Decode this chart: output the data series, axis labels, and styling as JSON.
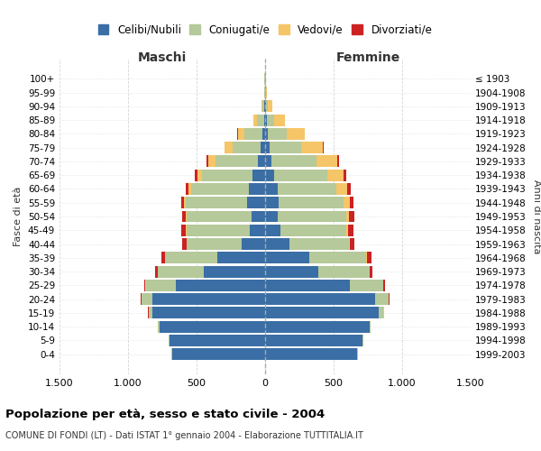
{
  "age_groups": [
    "0-4",
    "5-9",
    "10-14",
    "15-19",
    "20-24",
    "25-29",
    "30-34",
    "35-39",
    "40-44",
    "45-49",
    "50-54",
    "55-59",
    "60-64",
    "65-69",
    "70-74",
    "75-79",
    "80-84",
    "85-89",
    "90-94",
    "95-99",
    "100+"
  ],
  "birth_years": [
    "1999-2003",
    "1994-1998",
    "1989-1993",
    "1984-1988",
    "1979-1983",
    "1974-1978",
    "1969-1973",
    "1964-1968",
    "1959-1963",
    "1954-1958",
    "1949-1953",
    "1944-1948",
    "1939-1943",
    "1934-1938",
    "1929-1933",
    "1924-1928",
    "1919-1923",
    "1914-1918",
    "1909-1913",
    "1904-1908",
    "≤ 1903"
  ],
  "maschi": {
    "celibi": [
      680,
      700,
      770,
      820,
      820,
      650,
      450,
      350,
      170,
      110,
      100,
      130,
      120,
      90,
      55,
      35,
      20,
      8,
      4,
      2,
      2
    ],
    "coniugati": [
      5,
      5,
      10,
      30,
      80,
      220,
      330,
      380,
      400,
      460,
      470,
      450,
      420,
      370,
      310,
      200,
      130,
      50,
      15,
      3,
      2
    ],
    "vedovi": [
      0,
      0,
      0,
      1,
      2,
      2,
      2,
      3,
      5,
      6,
      8,
      12,
      20,
      35,
      50,
      60,
      50,
      25,
      8,
      2,
      1
    ],
    "divorziati": [
      0,
      0,
      1,
      2,
      5,
      10,
      20,
      25,
      30,
      35,
      30,
      18,
      20,
      15,
      10,
      3,
      2,
      1,
      1,
      0,
      0
    ]
  },
  "femmine": {
    "nubili": [
      670,
      710,
      760,
      830,
      800,
      620,
      390,
      320,
      180,
      110,
      90,
      100,
      90,
      65,
      45,
      30,
      18,
      10,
      5,
      2,
      2
    ],
    "coniugate": [
      5,
      5,
      12,
      35,
      100,
      240,
      370,
      420,
      430,
      480,
      500,
      470,
      430,
      390,
      330,
      230,
      140,
      55,
      18,
      4,
      2
    ],
    "vedove": [
      0,
      0,
      0,
      1,
      2,
      2,
      3,
      5,
      8,
      15,
      25,
      50,
      80,
      120,
      150,
      160,
      130,
      80,
      30,
      5,
      2
    ],
    "divorziate": [
      0,
      0,
      1,
      2,
      5,
      12,
      20,
      30,
      35,
      40,
      35,
      22,
      25,
      18,
      12,
      5,
      3,
      2,
      1,
      0,
      0
    ]
  },
  "colors": {
    "celibi": "#3a6ea5",
    "coniugati": "#b5c99a",
    "vedovi": "#f5c567",
    "divorziati": "#cc2222"
  },
  "xlim": 1500,
  "xlabel_left": "Maschi",
  "xlabel_right": "Femmine",
  "ylabel_left": "Fasce di età",
  "ylabel_right": "Anni di nascita",
  "title": "Popolazione per età, sesso e stato civile - 2004",
  "subtitle": "COMUNE DI FONDI (LT) - Dati ISTAT 1° gennaio 2004 - Elaborazione TUTTITALIA.IT",
  "legend_labels": [
    "Celibi/Nubili",
    "Coniugati/e",
    "Vedovi/e",
    "Divorziati/e"
  ],
  "xticks": [
    -1500,
    -1000,
    -500,
    0,
    500,
    1000,
    1500
  ],
  "xtick_labels": [
    "1.500",
    "1.000",
    "500",
    "0",
    "500",
    "1.000",
    "1.500"
  ],
  "background_color": "#ffffff",
  "grid_color": "#cccccc"
}
